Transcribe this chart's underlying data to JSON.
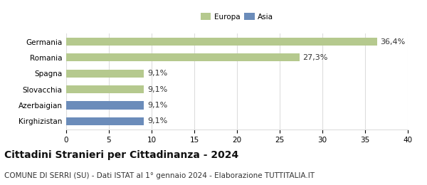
{
  "categories": [
    "Kirghizistan",
    "Azerbaigian",
    "Slovacchia",
    "Spagna",
    "Romania",
    "Germania"
  ],
  "values": [
    9.1,
    9.1,
    9.1,
    9.1,
    27.3,
    36.4
  ],
  "labels": [
    "9,1%",
    "9,1%",
    "9,1%",
    "9,1%",
    "27,3%",
    "36,4%"
  ],
  "colors": [
    "#6b8cba",
    "#6b8cba",
    "#b5c98e",
    "#b5c98e",
    "#b5c98e",
    "#b5c98e"
  ],
  "legend": [
    {
      "label": "Europa",
      "color": "#b5c98e"
    },
    {
      "label": "Asia",
      "color": "#6b8cba"
    }
  ],
  "xlim": [
    0,
    40
  ],
  "xticks": [
    0,
    5,
    10,
    15,
    20,
    25,
    30,
    35,
    40
  ],
  "title": "Cittadini Stranieri per Cittadinanza - 2024",
  "subtitle": "COMUNE DI SERRI (SU) - Dati ISTAT al 1° gennaio 2024 - Elaborazione TUTTITALIA.IT",
  "title_fontsize": 10,
  "subtitle_fontsize": 7.5,
  "label_fontsize": 8,
  "tick_fontsize": 7.5,
  "bar_height": 0.5,
  "background_color": "#ffffff",
  "grid_color": "#dddddd"
}
